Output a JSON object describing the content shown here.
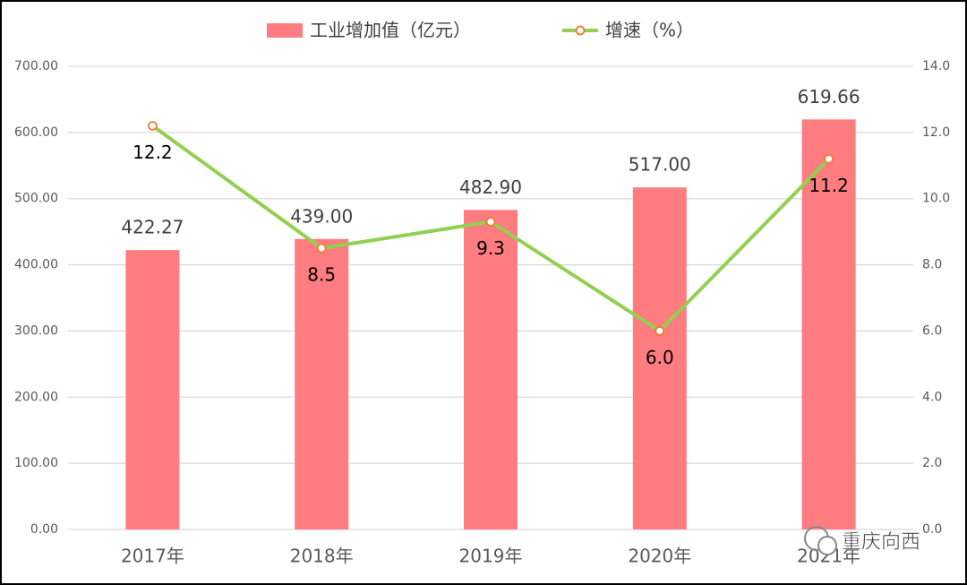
{
  "chart_data": {
    "type": "combo",
    "categories": [
      "2017年",
      "2018年",
      "2019年",
      "2020年",
      "2021年"
    ],
    "series": [
      {
        "name": "工业增加值（亿元）",
        "type": "bar",
        "color": "#ff7c80",
        "axis": "y",
        "values": [
          422.27,
          439,
          482.9,
          517,
          619.66
        ],
        "value_labels": [
          "422.27",
          "439.00",
          "482.90",
          "517.00",
          "619.66"
        ]
      },
      {
        "name": "增速（%）",
        "type": "line",
        "color": "#92d050",
        "marker_color": "#ed7d31",
        "axis": "y2",
        "values": [
          12.2,
          8.5,
          9.3,
          6,
          11.2
        ],
        "value_labels": [
          "12.2",
          "8.5",
          "9.3",
          "6.0",
          "11.2"
        ]
      }
    ],
    "ylim": [
      0,
      700
    ],
    "yticks": [
      {
        "value": 0,
        "label": "0.00"
      },
      {
        "value": 100,
        "label": "100.00"
      },
      {
        "value": 200,
        "label": "200.00"
      },
      {
        "value": 300,
        "label": "300.00"
      },
      {
        "value": 400,
        "label": "400.00"
      },
      {
        "value": 500,
        "label": "500.00"
      },
      {
        "value": 600,
        "label": "600.00"
      },
      {
        "value": 700,
        "label": "700.00"
      }
    ],
    "y2lim": [
      0,
      14
    ],
    "y2ticks": [
      {
        "value": 0,
        "label": "0.0"
      },
      {
        "value": 2,
        "label": "2.0"
      },
      {
        "value": 4,
        "label": "4.0"
      },
      {
        "value": 6,
        "label": "6.0"
      },
      {
        "value": 8,
        "label": "8.0"
      },
      {
        "value": 10,
        "label": "10.0"
      },
      {
        "value": 12,
        "label": "12.0"
      },
      {
        "value": 14,
        "label": "14.0"
      }
    ],
    "grid": true,
    "legend": "top",
    "watermark": "重庆向西"
  }
}
